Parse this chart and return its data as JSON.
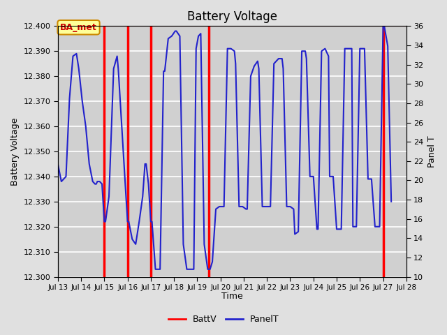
{
  "title": "Battery Voltage",
  "xlabel": "Time",
  "ylabel_left": "Battery Voltage",
  "ylabel_right": "Panel T",
  "ylim_left": [
    12.3,
    12.4
  ],
  "ylim_right": [
    10,
    36
  ],
  "yticks_left": [
    12.3,
    12.31,
    12.32,
    12.33,
    12.34,
    12.35,
    12.36,
    12.37,
    12.38,
    12.39,
    12.4
  ],
  "yticks_right": [
    10,
    12,
    14,
    16,
    18,
    20,
    22,
    24,
    26,
    28,
    30,
    32,
    34,
    36
  ],
  "xtick_labels": [
    "Jul 13",
    "Jul 14",
    "Jul 15",
    "Jul 16",
    "Jul 17",
    "Jul 18",
    "Jul 19",
    "Jul 20",
    "Jul 21",
    "Jul 22",
    "Jul 23",
    "Jul 24",
    "Jul 25",
    "Jul 26",
    "Jul 27",
    "Jul 28"
  ],
  "xlim": [
    13,
    28
  ],
  "background_color": "#e0e0e0",
  "plot_bg_color": "#d0d0d0",
  "grid_color": "#ffffff",
  "red_line_color": "#ff0000",
  "blue_line_color": "#2222cc",
  "annotation_text": "BA_met",
  "annotation_bg": "#ffff99",
  "annotation_border": "#cc8800",
  "annotation_text_color": "#cc0000",
  "red_vlines_x": [
    15.0,
    16.0,
    17.0,
    19.5,
    27.0
  ],
  "batt_v_y": 12.4,
  "panel_t_x": [
    13.0,
    13.15,
    13.35,
    13.5,
    13.65,
    13.8,
    13.9,
    14.05,
    14.2,
    14.35,
    14.5,
    14.6,
    14.65,
    14.7,
    14.8,
    14.9,
    15.0,
    15.05,
    15.2,
    15.4,
    15.55,
    15.6,
    15.75,
    15.9,
    16.0,
    16.05,
    16.2,
    16.35,
    16.5,
    16.65,
    16.75,
    16.8,
    16.9,
    17.0,
    17.05,
    17.2,
    17.4,
    17.55,
    17.6,
    17.75,
    17.9,
    18.05,
    18.1,
    18.25,
    18.4,
    18.55,
    18.65,
    18.7,
    18.85,
    18.95,
    19.05,
    19.15,
    19.3,
    19.45,
    19.5,
    19.55,
    19.65,
    19.8,
    19.95,
    20.1,
    20.15,
    20.3,
    20.45,
    20.6,
    20.65,
    20.8,
    20.95,
    21.1,
    21.15,
    21.3,
    21.45,
    21.6,
    21.65,
    21.8,
    21.95,
    22.1,
    22.15,
    22.3,
    22.5,
    22.65,
    22.7,
    22.85,
    23.0,
    23.15,
    23.2,
    23.35,
    23.5,
    23.65,
    23.7,
    23.85,
    24.0,
    24.15,
    24.2,
    24.35,
    24.5,
    24.65,
    24.7,
    24.85,
    25.0,
    25.15,
    25.2,
    25.35,
    25.5,
    25.65,
    25.7,
    25.85,
    26.0,
    26.15,
    26.2,
    26.35,
    26.5,
    26.65,
    26.7,
    26.85,
    27.0,
    27.05,
    27.2,
    27.35
  ],
  "panel_t_y": [
    12.345,
    12.338,
    12.34,
    12.371,
    12.388,
    12.389,
    12.383,
    12.37,
    12.36,
    12.345,
    12.338,
    12.337,
    12.337,
    12.338,
    12.338,
    12.337,
    12.322,
    12.322,
    12.332,
    12.383,
    12.388,
    12.383,
    12.36,
    12.337,
    12.322,
    12.322,
    12.315,
    12.313,
    12.322,
    12.332,
    12.345,
    12.345,
    12.337,
    12.322,
    12.322,
    12.303,
    12.303,
    12.382,
    12.382,
    12.395,
    12.396,
    12.398,
    12.398,
    12.396,
    12.313,
    12.303,
    12.303,
    12.303,
    12.303,
    12.391,
    12.396,
    12.397,
    12.313,
    12.303,
    12.303,
    12.303,
    12.306,
    12.327,
    12.328,
    12.328,
    12.328,
    12.391,
    12.391,
    12.39,
    12.385,
    12.328,
    12.328,
    12.327,
    12.327,
    12.38,
    12.384,
    12.386,
    12.383,
    12.328,
    12.328,
    12.328,
    12.328,
    12.385,
    12.387,
    12.387,
    12.383,
    12.328,
    12.328,
    12.327,
    12.317,
    12.318,
    12.39,
    12.39,
    12.387,
    12.34,
    12.34,
    12.319,
    12.319,
    12.39,
    12.391,
    12.388,
    12.34,
    12.34,
    12.319,
    12.319,
    12.319,
    12.391,
    12.391,
    12.391,
    12.32,
    12.32,
    12.391,
    12.391,
    12.391,
    12.339,
    12.339,
    12.32,
    12.32,
    12.32,
    12.4,
    12.4,
    12.392,
    12.33
  ]
}
